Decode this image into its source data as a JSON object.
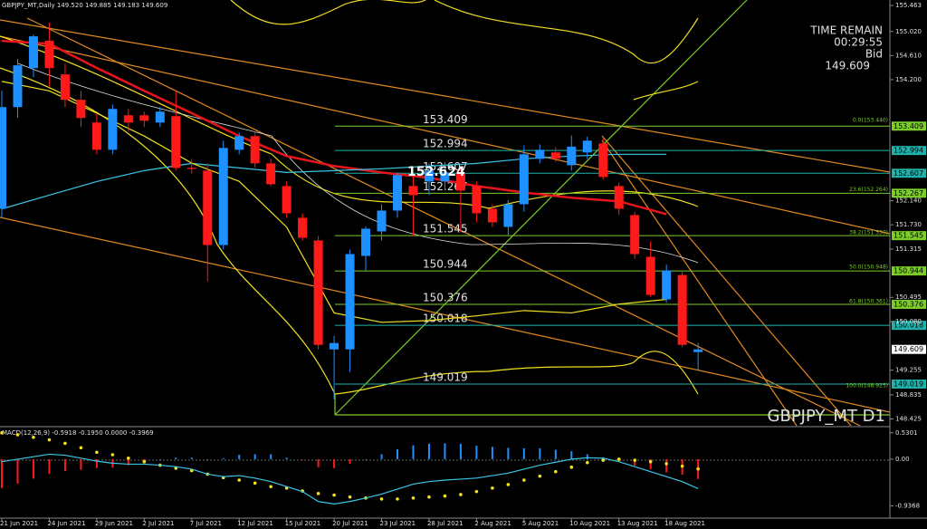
{
  "chart_data": [
    {
      "type": "candlestick",
      "title": "GBPJPY_MT,Daily  149.520 149.885 149.183 149.609",
      "symbol_label": "GBPJPY_MT D1",
      "timer": {
        "caption": "TIME REMAIN",
        "time": "00:29:55",
        "bid_caption": "Bid",
        "bid": 149.609
      },
      "annotation": 152.624,
      "categories": [
        "21 Jun 2021",
        null,
        null,
        "24 Jun 2021",
        null,
        null,
        "29 Jun 2021",
        null,
        null,
        "2 Jul 2021",
        null,
        null,
        "7 Jul 2021",
        null,
        null,
        "12 Jul 2021",
        null,
        null,
        "15 Jul 2021",
        null,
        null,
        "20 Jul 2021",
        null,
        null,
        "23 Jul 2021",
        null,
        null,
        "28 Jul 2021",
        null,
        null,
        "2 Aug 2021",
        null,
        null,
        "5 Aug 2021",
        null,
        null,
        "10 Aug 2021",
        null,
        null,
        "13 Aug 2021",
        null,
        null,
        "18 Aug 2021",
        null,
        null
      ],
      "open": [
        152.003,
        153.733,
        154.397,
        154.861,
        154.289,
        153.857,
        153.47,
        153.007,
        153.594,
        153.594,
        153.47,
        153.579,
        152.7,
        152.652,
        151.385,
        153.007,
        153.239,
        152.775,
        152.389,
        151.849,
        151.463,
        149.609,
        149.609,
        151.2,
        151.617,
        151.972,
        152.389,
        152.466,
        152.466,
        152.621,
        152.389,
        152.003,
        151.694,
        152.08,
        152.853,
        152.961,
        152.744,
        152.961,
        153.115,
        152.389,
        151.895,
        151.185,
        150.459,
        150.876,
        149.563
      ],
      "high": [
        154.011,
        154.552,
        154.969,
        155.17,
        154.475,
        154.011,
        153.625,
        153.78,
        153.702,
        153.656,
        153.733,
        154.011,
        152.85,
        152.775,
        153.162,
        153.3,
        153.316,
        152.853,
        152.466,
        151.926,
        151.54,
        149.841,
        151.308,
        151.7,
        152.08,
        152.62,
        152.55,
        152.775,
        152.8,
        152.7,
        152.466,
        152.08,
        152.15,
        153.084,
        153.1,
        153.05,
        153.25,
        153.23,
        153.2,
        152.45,
        151.95,
        151.45,
        151.05,
        150.95,
        149.72
      ],
      "low": [
        151.849,
        153.548,
        154.243,
        154.088,
        153.733,
        153.393,
        152.93,
        152.93,
        153.316,
        153.393,
        153.393,
        152.652,
        152.6,
        150.767,
        151.308,
        152.93,
        152.698,
        152.389,
        151.849,
        151.463,
        149.61,
        148.76,
        149.223,
        150.95,
        151.463,
        151.849,
        151.54,
        152.235,
        152.312,
        151.6,
        151.771,
        151.694,
        151.54,
        151.95,
        152.775,
        152.8,
        152.65,
        152.85,
        152.5,
        151.9,
        151.15,
        150.5,
        150.4,
        149.65,
        149.25
      ],
      "close": [
        153.733,
        154.444,
        154.938,
        154.397,
        153.857,
        153.548,
        153.007,
        153.702,
        153.47,
        153.501,
        153.656,
        152.698,
        152.68,
        151.385,
        153.038,
        153.239,
        152.775,
        152.42,
        151.926,
        151.509,
        149.686,
        149.717,
        151.231,
        151.663,
        151.972,
        152.575,
        152.235,
        152.652,
        152.621,
        152.312,
        151.926,
        151.771,
        152.08,
        152.93,
        153.007,
        152.853,
        153.06,
        153.162,
        152.544,
        152.003,
        151.231,
        150.536,
        150.953,
        149.686,
        149.609
      ],
      "up_color": "#1e90ff",
      "down_color": "#ff1a1a",
      "indicators": [
        {
          "color": "#e8141c",
          "x": [
            "21 Jun 2021",
            "24 Jun 2021",
            "29 Jun 2021",
            "2 Jul 2021",
            "7 Jul 2021",
            "12 Jul 2021",
            "15 Jul 2021",
            "20 Jul 2021",
            "23 Jul 2021",
            "28 Jul 2021",
            "2 Aug 2021",
            "5 Aug 2021",
            "10 Aug 2021",
            "13 Aug 2021",
            "18 Aug 2021"
          ],
          "values": [
            154.86,
            154.81,
            154.4,
            154.01,
            153.63,
            153.24,
            152.9,
            152.73,
            152.62,
            152.53,
            152.39,
            152.28,
            152.19,
            152.13,
            151.91
          ]
        },
        {
          "color": "#39c6e6",
          "x": [
            "21 Jun 2021",
            "24 Jun 2021",
            "29 Jun 2021",
            "2 Jul 2021",
            "7 Jul 2021",
            "12 Jul 2021",
            "15 Jul 2021",
            "20 Jul 2021",
            "23 Jul 2021",
            "28 Jul 2021",
            "2 Aug 2021",
            "5 Aug 2021",
            "10 Aug 2021",
            "13 Aug 2021",
            "18 Aug 2021"
          ],
          "values": [
            152.0,
            152.235,
            152.466,
            152.652,
            152.775,
            152.698,
            152.621,
            152.652,
            152.683,
            152.729,
            152.775,
            152.853,
            152.899,
            152.93,
            152.93
          ]
        },
        {
          "color": "#f0e020",
          "x": [
            "21 Jun 2021",
            "24 Jun 2021",
            "29 Jun 2021",
            "2 Jul 2021",
            "7 Jul 2021",
            "12 Jul 2021",
            "15 Jul 2021",
            "20 Jul 2021",
            "23 Jul 2021",
            "28 Jul 2021",
            "2 Aug 2021",
            "5 Aug 2021",
            "10 Aug 2021",
            "13 Aug 2021",
            "18 Aug 2021"
          ],
          "values": [
            154.17,
            154.01,
            153.63,
            153.24,
            152.78,
            152.47,
            151.69,
            150.23,
            150.07,
            150.1,
            150.18,
            150.27,
            150.23,
            150.38,
            150.46
          ]
        }
      ],
      "levels": [
        {
          "value": 153.409,
          "color": "#7ccd2a"
        },
        {
          "value": 152.994,
          "color": "#20b2aa"
        },
        {
          "value": 152.607,
          "color": "#20b2aa"
        },
        {
          "value": 152.267,
          "color": "#7ccd2a"
        },
        {
          "value": 151.545,
          "color": "#7ccd2a"
        },
        {
          "value": 150.944,
          "color": "#7ccd2a"
        },
        {
          "value": 150.376,
          "color": "#7ccd2a"
        },
        {
          "value": 150.018,
          "color": "#20b2aa"
        },
        {
          "value": 149.019,
          "color": "#20b2aa"
        }
      ],
      "fib_labels": [
        {
          "text": "0.0(153.440)",
          "value": 153.44
        },
        {
          "text": "23.6(152.264)",
          "value": 152.264
        },
        {
          "text": "38.2(151.530)",
          "value": 151.53
        },
        {
          "text": "50.0(150.948)",
          "value": 150.948
        },
        {
          "text": "61.8(150.361)",
          "value": 150.361
        },
        {
          "text": "100.0(148.925)",
          "value": 148.925
        }
      ],
      "ylim": [
        148.294,
        155.556
      ],
      "yticks": [
        155.463,
        {
          "value": 155.02,
          "label": "155.020"
        },
        {
          "value": 154.61,
          "label": "154.610"
        },
        {
          "value": 154.2,
          "label": "154.200"
        },
        {
          "value": 152.14,
          "label": "152.140"
        },
        {
          "value": 151.73,
          "label": "151.730"
        },
        151.315,
        150.495,
        {
          "value": 150.08,
          "label": "150.080"
        },
        149.255,
        148.835,
        148.425
      ],
      "grid": false
    },
    {
      "type": "macd",
      "title": "MACD(12,26,9) -0.5918 -0.1950 0.0000 -0.3969",
      "values": [
        -0.58,
        -0.49,
        -0.39,
        -0.29,
        -0.24,
        -0.21,
        -0.18,
        -0.17,
        -0.12,
        -0.05,
        0.0,
        0.03,
        0.03,
        0.0,
        0.02,
        0.09,
        0.1,
        0.1,
        0.03,
        -0.01,
        -0.16,
        -0.18,
        -0.09,
        0.0,
        0.1,
        0.2,
        0.28,
        0.31,
        0.32,
        0.31,
        0.27,
        0.25,
        0.23,
        0.22,
        0.22,
        0.19,
        0.16,
        0.1,
        0.04,
        -0.05,
        -0.13,
        -0.2,
        -0.26,
        -0.31,
        -0.3969
      ],
      "up_color": "#1e90ff",
      "down_color": "#ff1a1a",
      "series": [
        {
          "color": "#f5e21c",
          "style": "dots",
          "values": [
            0.53,
            0.49,
            0.44,
            0.39,
            0.32,
            0.23,
            0.14,
            0.09,
            0.02,
            -0.05,
            -0.12,
            -0.18,
            -0.23,
            -0.3,
            -0.37,
            -0.42,
            -0.48,
            -0.55,
            -0.58,
            -0.64,
            -0.69,
            -0.72,
            -0.76,
            -0.78,
            -0.8,
            -0.8,
            -0.78,
            -0.76,
            -0.74,
            -0.71,
            -0.65,
            -0.58,
            -0.51,
            -0.42,
            -0.34,
            -0.25,
            -0.16,
            -0.07,
            -0.02,
            0.0,
            -0.02,
            -0.05,
            -0.09,
            -0.14,
            -0.195
          ]
        },
        {
          "color": "#39c6e6",
          "style": "line",
          "values": [
            -0.05,
            0.0,
            0.05,
            0.1,
            0.08,
            0.02,
            -0.04,
            -0.08,
            -0.1,
            -0.1,
            -0.12,
            -0.15,
            -0.2,
            -0.3,
            -0.35,
            -0.33,
            -0.38,
            -0.45,
            -0.55,
            -0.65,
            -0.85,
            -0.9,
            -0.85,
            -0.78,
            -0.7,
            -0.6,
            -0.5,
            -0.45,
            -0.42,
            -0.4,
            -0.38,
            -0.33,
            -0.28,
            -0.2,
            -0.12,
            -0.06,
            0.0,
            0.03,
            0.02,
            -0.05,
            -0.15,
            -0.25,
            -0.35,
            -0.45,
            -0.5918
          ]
        }
      ],
      "ylim": [
        -1.184,
        0.636
      ],
      "yticks": [
        0.5301,
        {
          "value": 0,
          "label": "0.00"
        },
        -0.9368
      ]
    }
  ]
}
